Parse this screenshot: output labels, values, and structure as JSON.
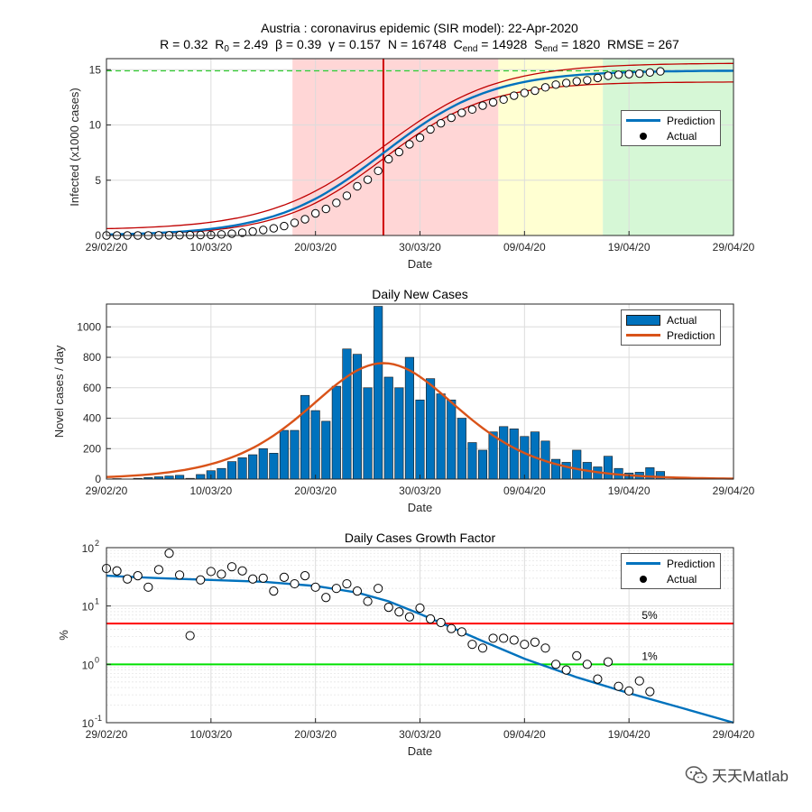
{
  "colors": {
    "prediction_blue": "#0072bd",
    "prediction_orange": "#d95319",
    "bar_blue": "#0072bd",
    "band_red_line": "#c00000",
    "vline_red": "#d00000",
    "ref_red": "#ff0000",
    "ref_green": "#00e000",
    "dash_green": "#33cc33",
    "zone_red": "#ffd6d6",
    "zone_yellow": "#ffffd2",
    "zone_green": "#d6f7d6"
  },
  "header": {
    "title": "Austria : coronavirus epidemic (SIR model): 22-Apr-2020",
    "p_R_label": "R = ",
    "p_R_value": "0.32",
    "p_R0_label": "R",
    "p_R0_sub": "0",
    "p_R0_eq": " = ",
    "p_R0_value": "2.49",
    "p_beta_label": "β = ",
    "p_beta_value": "0.39",
    "p_gamma_label": "γ = ",
    "p_gamma_value": "0.157",
    "p_N_label": "N = ",
    "p_N_value": "16748",
    "p_C_label": "C",
    "p_C_sub": "end",
    "p_C_eq": " = ",
    "p_C_value": "14928",
    "p_S_label": "S",
    "p_S_sub": "end",
    "p_S_eq": " = ",
    "p_S_value": "1820",
    "p_RMSE_label": "RMSE = ",
    "p_RMSE_value": "267"
  },
  "legends": {
    "top": [
      "Prediction",
      "Actual"
    ],
    "middle": [
      "Actual",
      "Prediction"
    ],
    "bottom": [
      "Prediction",
      "Actual"
    ]
  },
  "watermark": {
    "text": "天天Matlab",
    "icon": "wechat-icon"
  },
  "chart_data": [
    {
      "type": "line",
      "title": "",
      "xlabel": "Date",
      "ylabel": "Infected (x1000 cases)",
      "xlim": [
        0,
        60
      ],
      "ylim": [
        0,
        16
      ],
      "x_ticks": [
        0,
        10,
        20,
        30,
        40,
        50,
        60
      ],
      "x_tick_labels": [
        "29/02/20",
        "10/03/20",
        "20/03/20",
        "30/03/20",
        "09/04/20",
        "19/04/20",
        "29/04/20"
      ],
      "y_ticks": [
        0,
        5,
        10,
        15
      ],
      "y_tick_labels": [
        "0",
        "5",
        "10",
        "15"
      ],
      "grid": true,
      "legend_position": "right",
      "model": {
        "C_end": 14.928,
        "mid_day": 26.5,
        "scale_days": 5.2,
        "upper_end": 15.6,
        "lower_end": 13.9
      },
      "phase_zones": [
        {
          "name": "red",
          "start_day": 17.8,
          "end_day": 37.5
        },
        {
          "name": "yellow",
          "start_day": 37.5,
          "end_day": 47.5
        },
        {
          "name": "green",
          "start_day": 47.5,
          "end_day": 60
        }
      ],
      "peak_day": 26.5,
      "final_size_line": 14.9,
      "actual_days": [
        0,
        1,
        2,
        3,
        4,
        5,
        6,
        7,
        8,
        9,
        10,
        11,
        12,
        13,
        14,
        15,
        16,
        17,
        18,
        19,
        20,
        21,
        22,
        23,
        24,
        25,
        26,
        27,
        28,
        29,
        30,
        31,
        32,
        33,
        34,
        35,
        36,
        37,
        38,
        39,
        40,
        41,
        42,
        43,
        44,
        45,
        46,
        47,
        48,
        49,
        50,
        51,
        52,
        53
      ],
      "actual_values": [
        0.0,
        0.0,
        0.0,
        0.0,
        0.0,
        0.01,
        0.01,
        0.02,
        0.03,
        0.04,
        0.05,
        0.1,
        0.16,
        0.25,
        0.36,
        0.5,
        0.65,
        0.85,
        1.15,
        1.47,
        2.0,
        2.4,
        2.95,
        3.6,
        4.45,
        5.05,
        5.85,
        6.9,
        7.55,
        8.25,
        8.85,
        9.6,
        10.15,
        10.65,
        11.1,
        11.4,
        11.75,
        12.05,
        12.3,
        12.65,
        12.9,
        13.1,
        13.4,
        13.65,
        13.8,
        13.95,
        14.05,
        14.25,
        14.45,
        14.55,
        14.6,
        14.65,
        14.75,
        14.85
      ]
    },
    {
      "type": "bar",
      "title": "Daily New Cases",
      "xlabel": "Date",
      "ylabel": "Novel cases / day",
      "xlim": [
        0,
        60
      ],
      "ylim": [
        0,
        1150
      ],
      "x_ticks": [
        0,
        10,
        20,
        30,
        40,
        50,
        60
      ],
      "x_tick_labels": [
        "29/02/20",
        "10/03/20",
        "20/03/20",
        "30/03/20",
        "09/04/20",
        "19/04/20",
        "29/04/20"
      ],
      "y_ticks": [
        0,
        200,
        400,
        600,
        800,
        1000
      ],
      "y_tick_labels": [
        "0",
        "200",
        "400",
        "600",
        "800",
        "1000"
      ],
      "grid": true,
      "legend_position": "top-right",
      "prediction_model": {
        "C_end": 14928,
        "mid_day": 26.5,
        "scale_days": 4.9
      },
      "days": [
        1,
        2,
        3,
        4,
        5,
        6,
        7,
        8,
        9,
        10,
        11,
        12,
        13,
        14,
        15,
        16,
        17,
        18,
        19,
        20,
        21,
        22,
        23,
        24,
        25,
        26,
        27,
        28,
        29,
        30,
        31,
        32,
        33,
        34,
        35,
        36,
        37,
        38,
        39,
        40,
        41,
        42,
        43,
        44,
        45,
        46,
        47,
        48,
        49,
        50,
        51,
        52,
        53
      ],
      "values": [
        3,
        1,
        5,
        10,
        15,
        20,
        25,
        5,
        30,
        55,
        70,
        115,
        140,
        160,
        200,
        170,
        320,
        320,
        550,
        450,
        380,
        610,
        855,
        820,
        600,
        1135,
        670,
        600,
        800,
        520,
        660,
        560,
        520,
        400,
        240,
        190,
        310,
        345,
        330,
        280,
        310,
        250,
        130,
        110,
        190,
        110,
        80,
        150,
        70,
        40,
        45,
        75,
        50
      ]
    },
    {
      "type": "line",
      "title": "Daily Cases Growth Factor",
      "xlabel": "Date",
      "ylabel": "%",
      "y_scale": "log",
      "xlim": [
        0,
        60
      ],
      "ylim": [
        0.1,
        100
      ],
      "x_ticks": [
        0,
        10,
        20,
        30,
        40,
        50,
        60
      ],
      "x_tick_labels": [
        "29/02/20",
        "10/03/20",
        "20/03/20",
        "30/03/20",
        "09/04/20",
        "19/04/20",
        "29/04/20"
      ],
      "y_ticks": [
        0.1,
        1,
        10,
        100
      ],
      "y_tick_bases": [
        "10",
        "10",
        "10",
        "10"
      ],
      "y_tick_exps": [
        "-1",
        "0",
        "1",
        "2"
      ],
      "grid": true,
      "legend_position": "top-right",
      "reference_lines": [
        {
          "value": 5,
          "label": "5%",
          "color": "#ff0000"
        },
        {
          "value": 1,
          "label": "1%",
          "color": "#00e000"
        }
      ],
      "prediction_days": [
        0,
        5,
        10,
        15,
        20,
        24,
        27,
        30,
        33,
        36,
        40,
        45,
        50,
        55,
        60
      ],
      "prediction_values": [
        33,
        30,
        28,
        26,
        22,
        17,
        12,
        7.3,
        4.3,
        2.5,
        1.25,
        0.6,
        0.32,
        0.18,
        0.1
      ],
      "actual_days": [
        0,
        1,
        2,
        3,
        4,
        5,
        6,
        7,
        8,
        9,
        10,
        11,
        12,
        13,
        14,
        15,
        16,
        17,
        18,
        19,
        20,
        21,
        22,
        23,
        24,
        25,
        26,
        27,
        28,
        29,
        30,
        31,
        32,
        33,
        34,
        35,
        36,
        37,
        38,
        39,
        40,
        41,
        42,
        43,
        44,
        45,
        46,
        47,
        48,
        49,
        50,
        51,
        52
      ],
      "actual_values": [
        44,
        40,
        29,
        33,
        21,
        42,
        80,
        34,
        3.1,
        28,
        39,
        35,
        47,
        40,
        29,
        30,
        18,
        31,
        24,
        33,
        21,
        14,
        20,
        24,
        18,
        12,
        20,
        9.5,
        7.9,
        6.5,
        9.2,
        6,
        5.2,
        4.1,
        3.6,
        2.2,
        1.9,
        2.8,
        2.8,
        2.6,
        2.2,
        2.4,
        1.9,
        1.0,
        0.8,
        1.4,
        1.0,
        0.56,
        1.1,
        0.42,
        0.35,
        0.52,
        0.34
      ]
    }
  ]
}
